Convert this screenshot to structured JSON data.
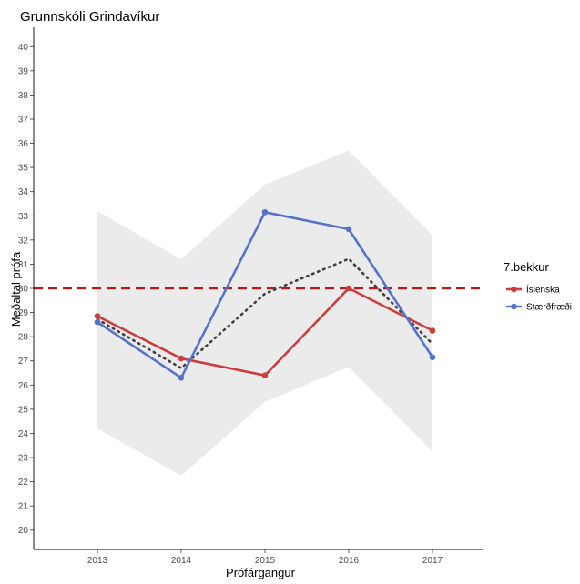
{
  "chart_data": {
    "type": "line",
    "title": "Grunnskóli Grindavíkur",
    "xlabel": "Prófárgangur",
    "ylabel": "Meðaltal prófa",
    "x": [
      "2013",
      "2014",
      "2015",
      "2016",
      "2017"
    ],
    "ylim": [
      19.2,
      40.8
    ],
    "y_ticks": [
      20,
      21,
      22,
      23,
      24,
      25,
      26,
      27,
      28,
      29,
      30,
      31,
      32,
      33,
      34,
      35,
      36,
      37,
      38,
      39,
      40
    ],
    "grid": false,
    "legend": {
      "title": "7.bekkur",
      "placement": "right"
    },
    "series": [
      {
        "name": "Íslenska",
        "color": "#cc3d3d",
        "values": [
          28.85,
          27.1,
          26.4,
          30.0,
          28.25
        ]
      },
      {
        "name": "Stærðfræði",
        "color": "#5573cc",
        "values": [
          28.6,
          26.3,
          33.15,
          32.45,
          27.15
        ]
      }
    ],
    "average_dotted": {
      "color": "#404040",
      "values": [
        28.72,
        26.7,
        29.78,
        31.22,
        27.7
      ]
    },
    "band": {
      "color": "#ebebeb",
      "lower": [
        24.2,
        22.25,
        25.3,
        26.75,
        23.25
      ],
      "upper": [
        33.2,
        31.2,
        34.3,
        35.7,
        32.2
      ]
    },
    "reference_line": {
      "value": 30,
      "color": "#b31a1a"
    }
  }
}
